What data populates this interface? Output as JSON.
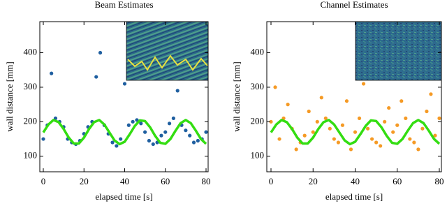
{
  "chart_data": [
    {
      "type": "scatter",
      "title": "Beam Estimates",
      "x_label": "elapsed time [s]",
      "y_label": "wall distance [mm]",
      "xlim": [
        0,
        80
      ],
      "xticks": [
        0,
        20,
        40,
        60,
        80
      ],
      "ylim": [
        55,
        490
      ],
      "yticks": [
        100,
        200,
        300,
        400
      ],
      "series": [
        {
          "style": "points",
          "color": "#1f5fa0",
          "x": [
            0,
            2,
            4,
            6,
            8,
            10,
            12,
            14,
            16,
            18,
            20,
            22,
            24,
            26,
            28,
            30,
            32,
            34,
            36,
            38,
            40,
            42,
            44,
            46,
            48,
            50,
            52,
            54,
            56,
            58,
            60,
            62,
            64,
            66,
            68,
            70,
            72,
            74,
            76,
            78,
            80
          ],
          "values": [
            150,
            190,
            340,
            210,
            200,
            185,
            150,
            140,
            135,
            145,
            165,
            185,
            200,
            330,
            400,
            190,
            165,
            140,
            130,
            150,
            310,
            190,
            200,
            205,
            195,
            170,
            145,
            135,
            140,
            160,
            170,
            195,
            210,
            290,
            190,
            175,
            160,
            140,
            145,
            150,
            170
          ]
        },
        {
          "style": "line",
          "color": "#33dd11",
          "x": [
            0,
            2.5,
            5,
            7.5,
            10,
            12.5,
            15,
            17.5,
            20,
            22.5,
            25,
            27.5,
            30,
            32.5,
            35,
            37.5,
            40,
            42.5,
            45,
            47.5,
            50,
            52.5,
            55,
            57.5,
            60,
            62.5,
            65,
            67.5,
            70,
            72.5,
            75,
            77.5,
            80
          ],
          "values": [
            169,
            192,
            205,
            199,
            179,
            154,
            137,
            137,
            154,
            179,
            199,
            205,
            192,
            169,
            146,
            135,
            142,
            164,
            188,
            204,
            202,
            184,
            159,
            139,
            136,
            150,
            174,
            196,
            205,
            196,
            174,
            150,
            136
          ]
        }
      ]
    },
    {
      "type": "scatter",
      "title": "Channel Estimates",
      "x_label": "elapsed time [s]",
      "y_label": "wall distance [mm]",
      "xlim": [
        0,
        80
      ],
      "xticks": [
        0,
        20,
        40,
        60,
        80
      ],
      "ylim": [
        55,
        490
      ],
      "yticks": [
        100,
        200,
        300,
        400
      ],
      "series": [
        {
          "style": "points",
          "color": "#f59a25",
          "x": [
            0,
            2,
            4,
            6,
            8,
            10,
            12,
            14,
            16,
            18,
            20,
            22,
            24,
            26,
            28,
            30,
            32,
            34,
            36,
            38,
            40,
            42,
            44,
            46,
            48,
            50,
            52,
            54,
            56,
            58,
            60,
            62,
            64,
            66,
            68,
            70,
            72,
            74,
            76,
            78,
            80
          ],
          "values": [
            200,
            300,
            150,
            210,
            250,
            180,
            120,
            140,
            160,
            230,
            170,
            200,
            270,
            210,
            180,
            150,
            140,
            190,
            260,
            120,
            170,
            210,
            310,
            180,
            150,
            140,
            130,
            200,
            240,
            170,
            190,
            260,
            210,
            150,
            140,
            120,
            180,
            230,
            280,
            160,
            210
          ]
        },
        {
          "style": "line",
          "color": "#33dd11",
          "x": [
            0,
            2.5,
            5,
            7.5,
            10,
            12.5,
            15,
            17.5,
            20,
            22.5,
            25,
            27.5,
            30,
            32.5,
            35,
            37.5,
            40,
            42.5,
            45,
            47.5,
            50,
            52.5,
            55,
            57.5,
            60,
            62.5,
            65,
            67.5,
            70,
            72.5,
            75,
            77.5,
            80
          ],
          "values": [
            169,
            192,
            205,
            199,
            179,
            154,
            137,
            137,
            154,
            179,
            199,
            205,
            192,
            169,
            146,
            135,
            142,
            164,
            188,
            204,
            202,
            184,
            159,
            139,
            136,
            150,
            174,
            196,
            205,
            196,
            174,
            150,
            136
          ]
        }
      ]
    }
  ]
}
